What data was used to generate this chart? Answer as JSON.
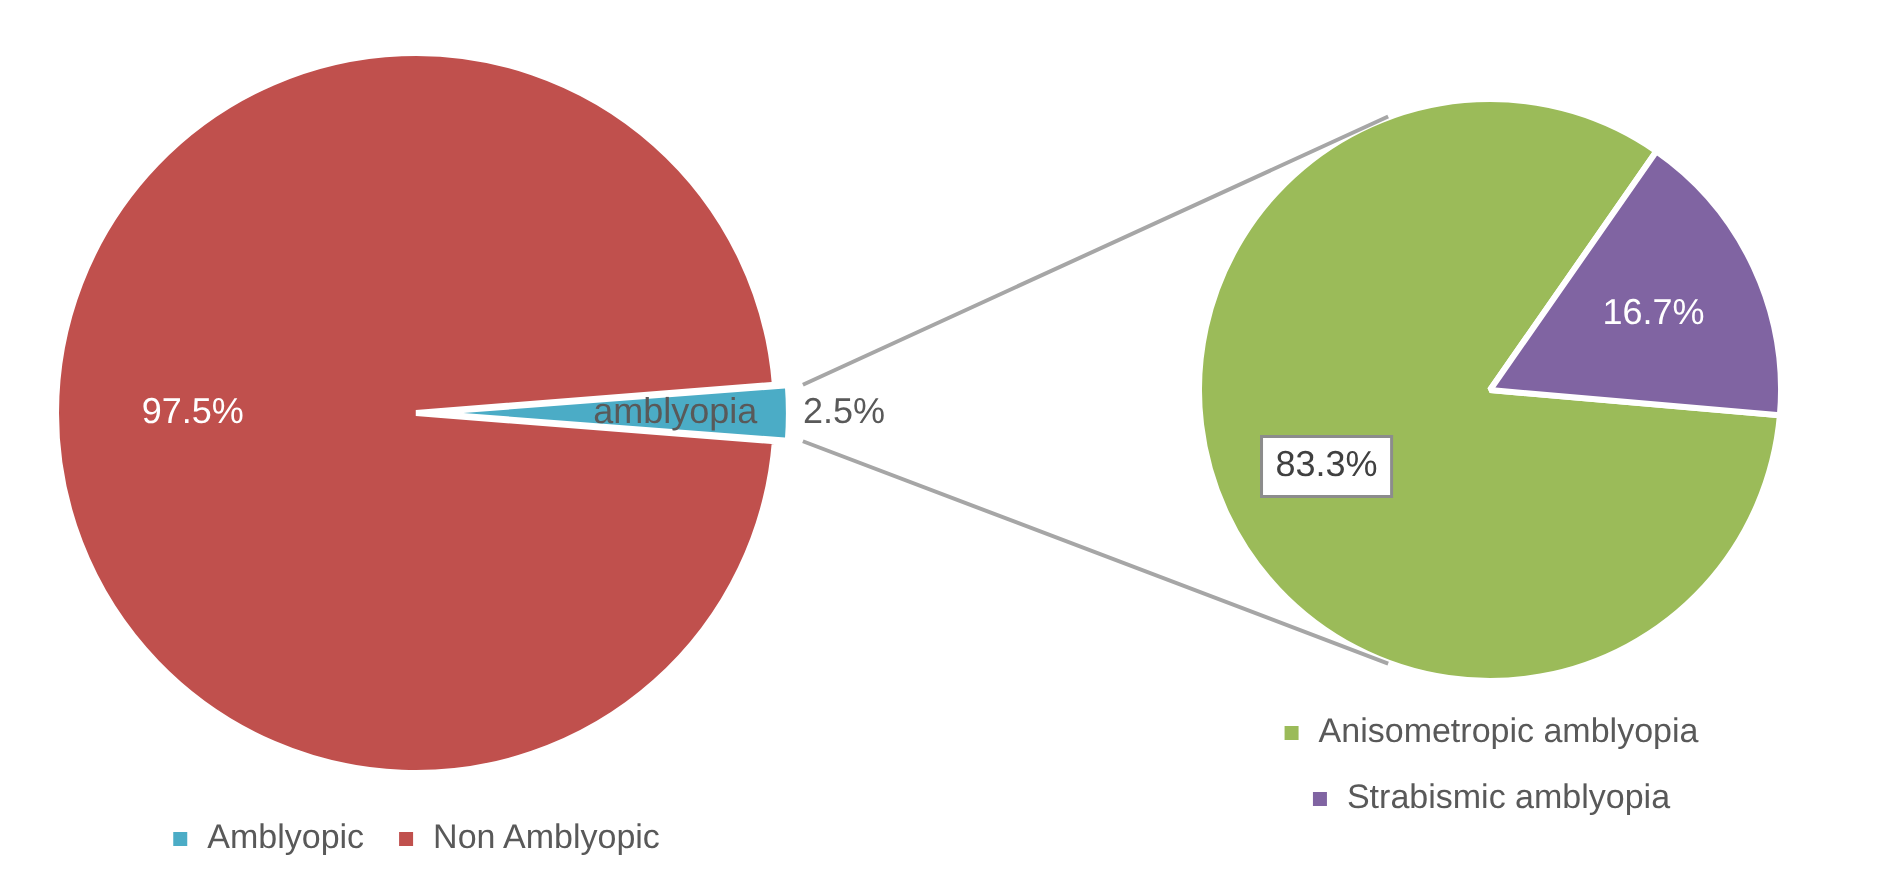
{
  "chart_data": [
    {
      "type": "pie",
      "categories": [
        "Amblyopic",
        "Non Amblyopic"
      ],
      "values": [
        2.5,
        97.5
      ],
      "colors": [
        "#4bacc6",
        "#c0504d"
      ],
      "value_labels": [
        "2.5%",
        "97.5%"
      ],
      "annotations": [
        "amblyopia"
      ],
      "legend": "bottom"
    },
    {
      "type": "pie",
      "categories": [
        "Anisometropic amblyopia",
        "Strabismic amblyopia"
      ],
      "values": [
        83.3,
        16.7
      ],
      "colors": [
        "#9bbb59",
        "#8064a2"
      ],
      "value_labels": [
        "83.3%",
        "16.7%"
      ],
      "legend": "bottom"
    }
  ]
}
